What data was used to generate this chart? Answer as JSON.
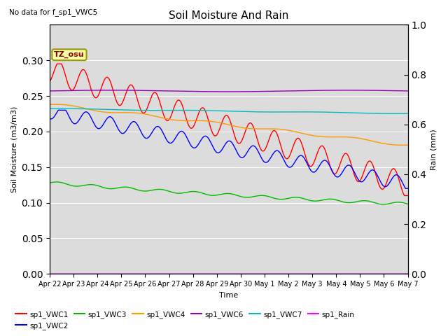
{
  "title": "Soil Moisture And Rain",
  "subtitle": "No data for f_sp1_VWC5",
  "xlabel": "Time",
  "ylabel_left": "Soil Moisture (m3/m3)",
  "ylabel_right": "Rain (mm)",
  "annotation": "TZ_osu",
  "plot_bg_color": "#dcdcdc",
  "fig_bg_color": "#ffffff",
  "ylim_left": [
    0.0,
    0.35
  ],
  "ylim_right": [
    0.0,
    1.1667
  ],
  "yticks_left": [
    0.0,
    0.05,
    0.1,
    0.15,
    0.2,
    0.25,
    0.3
  ],
  "ytick_labels_right": [
    "0.0",
    "0.2",
    "0.4",
    "0.6",
    "0.8",
    "1.0"
  ],
  "legend_entries": [
    "sp1_VWC1",
    "sp1_VWC2",
    "sp1_VWC3",
    "sp1_VWC4",
    "sp1_VWC6",
    "sp1_VWC7",
    "sp1_Rain"
  ],
  "legend_colors": [
    "#ff0000",
    "#0000ff",
    "#00bb00",
    "#ff9900",
    "#9900bb",
    "#00bbbb",
    "#ff00ff"
  ],
  "tick_labels": [
    "Apr 22",
    "Apr 23",
    "Apr 24",
    "Apr 25",
    "Apr 26",
    "Apr 27",
    "Apr 28",
    "Apr 29",
    "Apr 30",
    "May 1",
    "May 2",
    "May 3",
    "May 4",
    "May 5",
    "May 6",
    "May 7"
  ],
  "num_points": 1440,
  "total_days": 15
}
